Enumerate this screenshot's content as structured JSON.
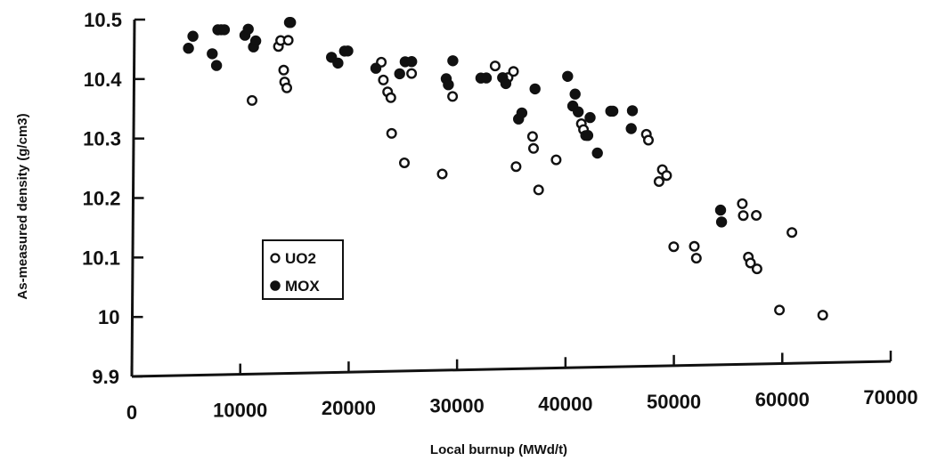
{
  "chart_data": {
    "type": "scatter",
    "xlabel": "Local burnup (MWd/t)",
    "ylabel": "As-measured density (g/cm3)",
    "xlim": [
      0,
      70000
    ],
    "ylim": [
      9.9,
      10.5
    ],
    "x_ticks": [
      "0",
      "10000",
      "20000",
      "30000",
      "40000",
      "50000",
      "60000",
      "70000"
    ],
    "y_ticks": [
      "9.9",
      "10",
      "10.1",
      "10.2",
      "10.3",
      "10.4",
      "10.5"
    ],
    "grid": false,
    "legend_position": "center-left",
    "series": [
      {
        "name": "UO2",
        "marker": "open-circle",
        "points": [
          [
            10900,
            10.36
          ],
          [
            13300,
            10.45
          ],
          [
            13500,
            10.46
          ],
          [
            13800,
            10.41
          ],
          [
            13900,
            10.39
          ],
          [
            14100,
            10.38
          ],
          [
            14200,
            10.46
          ],
          [
            22800,
            10.42
          ],
          [
            23000,
            10.39
          ],
          [
            23400,
            10.37
          ],
          [
            23700,
            10.36
          ],
          [
            23800,
            10.3
          ],
          [
            25000,
            10.25
          ],
          [
            25600,
            10.4
          ],
          [
            28500,
            10.23
          ],
          [
            29400,
            10.36
          ],
          [
            33300,
            10.41
          ],
          [
            34500,
            10.39
          ],
          [
            35000,
            10.4
          ],
          [
            35300,
            10.24
          ],
          [
            36800,
            10.29
          ],
          [
            36900,
            10.27
          ],
          [
            37400,
            10.2
          ],
          [
            39000,
            10.25
          ],
          [
            41300,
            10.31
          ],
          [
            41500,
            10.3
          ],
          [
            41700,
            10.29
          ],
          [
            47300,
            10.29
          ],
          [
            47500,
            10.28
          ],
          [
            48500,
            10.21
          ],
          [
            48800,
            10.23
          ],
          [
            49200,
            10.22
          ],
          [
            49900,
            10.1
          ],
          [
            51800,
            10.1
          ],
          [
            52000,
            10.08
          ],
          [
            56200,
            10.17
          ],
          [
            56300,
            10.15
          ],
          [
            56800,
            10.08
          ],
          [
            57000,
            10.07
          ],
          [
            57500,
            10.15
          ],
          [
            57600,
            10.06
          ],
          [
            59700,
            9.99
          ],
          [
            60800,
            10.12
          ],
          [
            63700,
            9.98
          ]
        ]
      },
      {
        "name": "MOX",
        "marker": "filled-circle",
        "points": [
          [
            5000,
            10.45
          ],
          [
            5400,
            10.47
          ],
          [
            7200,
            10.44
          ],
          [
            7600,
            10.42
          ],
          [
            7700,
            10.48
          ],
          [
            8000,
            10.48
          ],
          [
            8300,
            10.48
          ],
          [
            10200,
            10.47
          ],
          [
            10500,
            10.48
          ],
          [
            11000,
            10.45
          ],
          [
            11200,
            10.46
          ],
          [
            14300,
            10.49
          ],
          [
            14400,
            10.49
          ],
          [
            18200,
            10.43
          ],
          [
            18800,
            10.42
          ],
          [
            19400,
            10.44
          ],
          [
            19700,
            10.44
          ],
          [
            22300,
            10.41
          ],
          [
            24500,
            10.4
          ],
          [
            25000,
            10.42
          ],
          [
            25600,
            10.42
          ],
          [
            28800,
            10.39
          ],
          [
            29000,
            10.38
          ],
          [
            29400,
            10.42
          ],
          [
            32000,
            10.39
          ],
          [
            32500,
            10.39
          ],
          [
            34000,
            10.39
          ],
          [
            34300,
            10.38
          ],
          [
            35500,
            10.32
          ],
          [
            35800,
            10.33
          ],
          [
            37000,
            10.37
          ],
          [
            40000,
            10.39
          ],
          [
            40500,
            10.34
          ],
          [
            40700,
            10.36
          ],
          [
            41000,
            10.33
          ],
          [
            41900,
            10.29
          ],
          [
            42100,
            10.32
          ],
          [
            42800,
            10.26
          ],
          [
            44000,
            10.33
          ],
          [
            44200,
            10.33
          ],
          [
            45900,
            10.3
          ],
          [
            46000,
            10.33
          ],
          [
            54200,
            10.16
          ],
          [
            54300,
            10.14
          ]
        ]
      }
    ]
  }
}
